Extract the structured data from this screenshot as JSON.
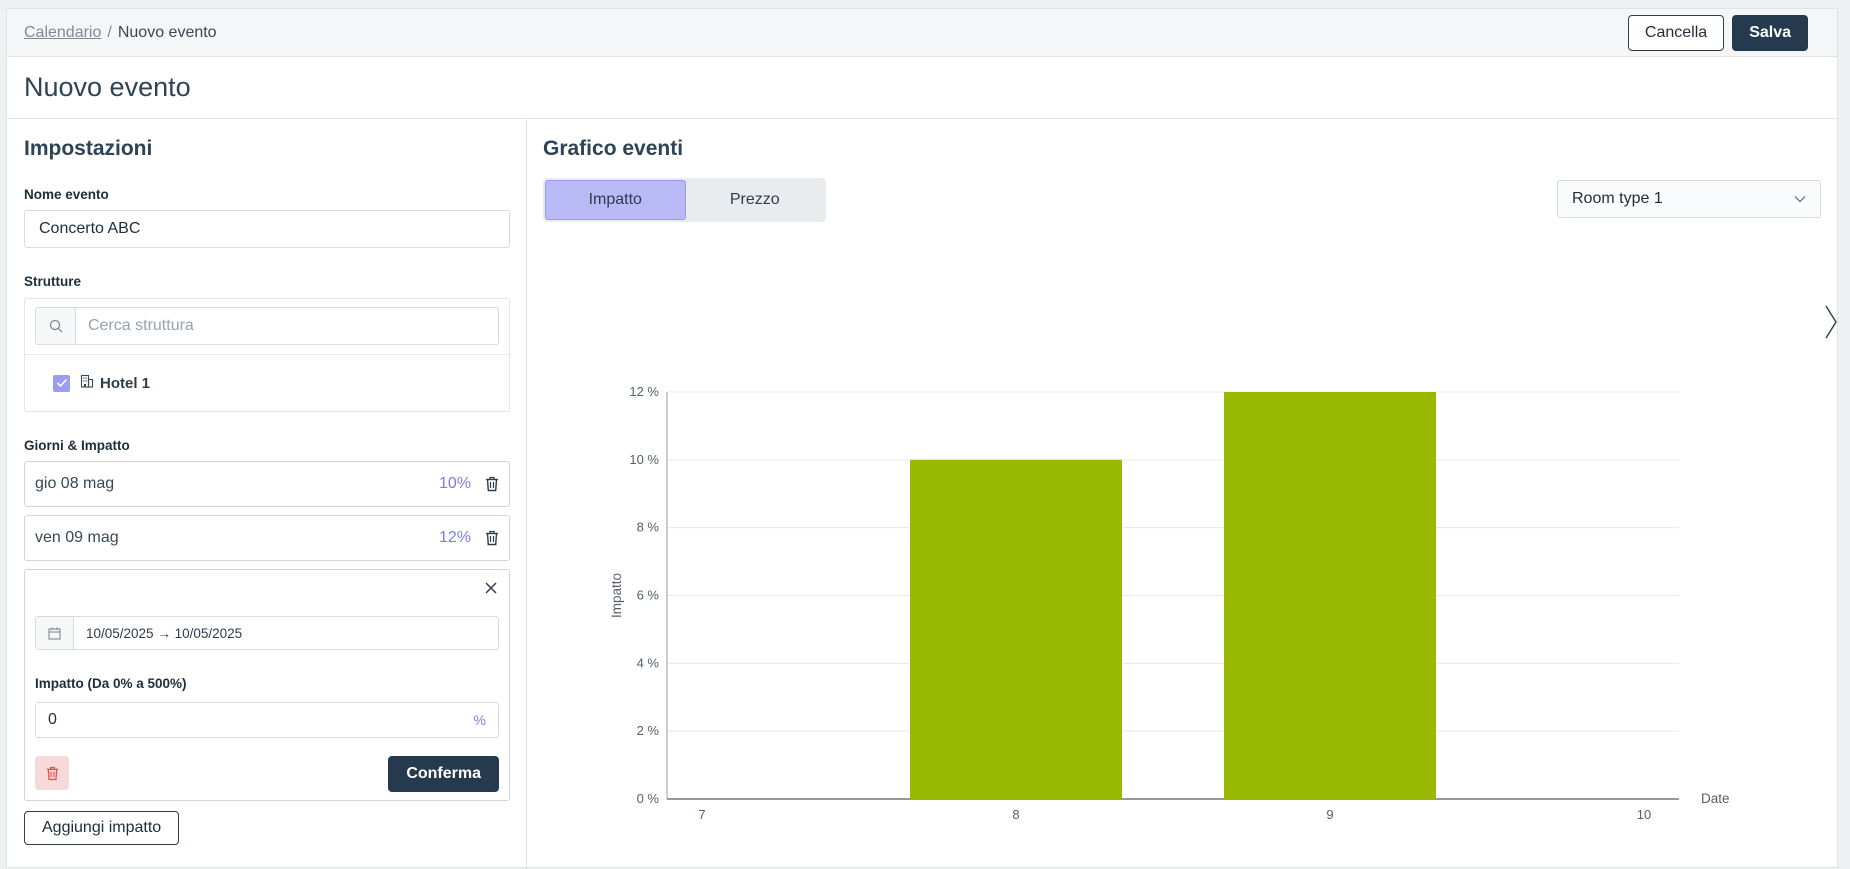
{
  "breadcrumb": {
    "parent": "Calendario",
    "separator": "/",
    "current": "Nuovo evento"
  },
  "actions": {
    "cancel": "Cancella",
    "save": "Salva"
  },
  "page": {
    "title": "Nuovo evento"
  },
  "settings": {
    "title": "Impostazioni",
    "event_name_label": "Nome evento",
    "event_name_value": "Concerto ABC",
    "structures_label": "Strutture",
    "structures_search_placeholder": "Cerca struttura",
    "hotel": {
      "name": "Hotel 1",
      "checked": true
    },
    "days_label": "Giorni & Impatto",
    "days": [
      {
        "label": "gio 08 mag",
        "impact": "10%"
      },
      {
        "label": "ven 09 mag",
        "impact": "12%"
      }
    ],
    "editor": {
      "date_range": "10/05/2025 → 10/05/2025",
      "impact_label": "Impatto (Da 0% a 500%)",
      "impact_value": "0",
      "impact_unit": "%",
      "confirm": "Conferma"
    },
    "add_impact": "Aggiungi impatto"
  },
  "chart_panel": {
    "title": "Grafico eventi",
    "toggle": {
      "options": [
        "Impatto",
        "Prezzo"
      ],
      "active": "Impatto"
    },
    "room_select": "Room type 1"
  },
  "colors": {
    "bar": "#99b800",
    "accent": "#7b7bf0",
    "dark": "#253a4f"
  },
  "chart_data": {
    "type": "bar",
    "categories": [
      "7",
      "8",
      "9",
      "10"
    ],
    "values": [
      0,
      10,
      12,
      0
    ],
    "xlabel": "Date",
    "ylabel": "Impatto",
    "ylim": [
      0,
      12
    ],
    "yticks": [
      "0 %",
      "2 %",
      "4 %",
      "6 %",
      "8 %",
      "10 %",
      "12 %"
    ],
    "grid": true
  }
}
